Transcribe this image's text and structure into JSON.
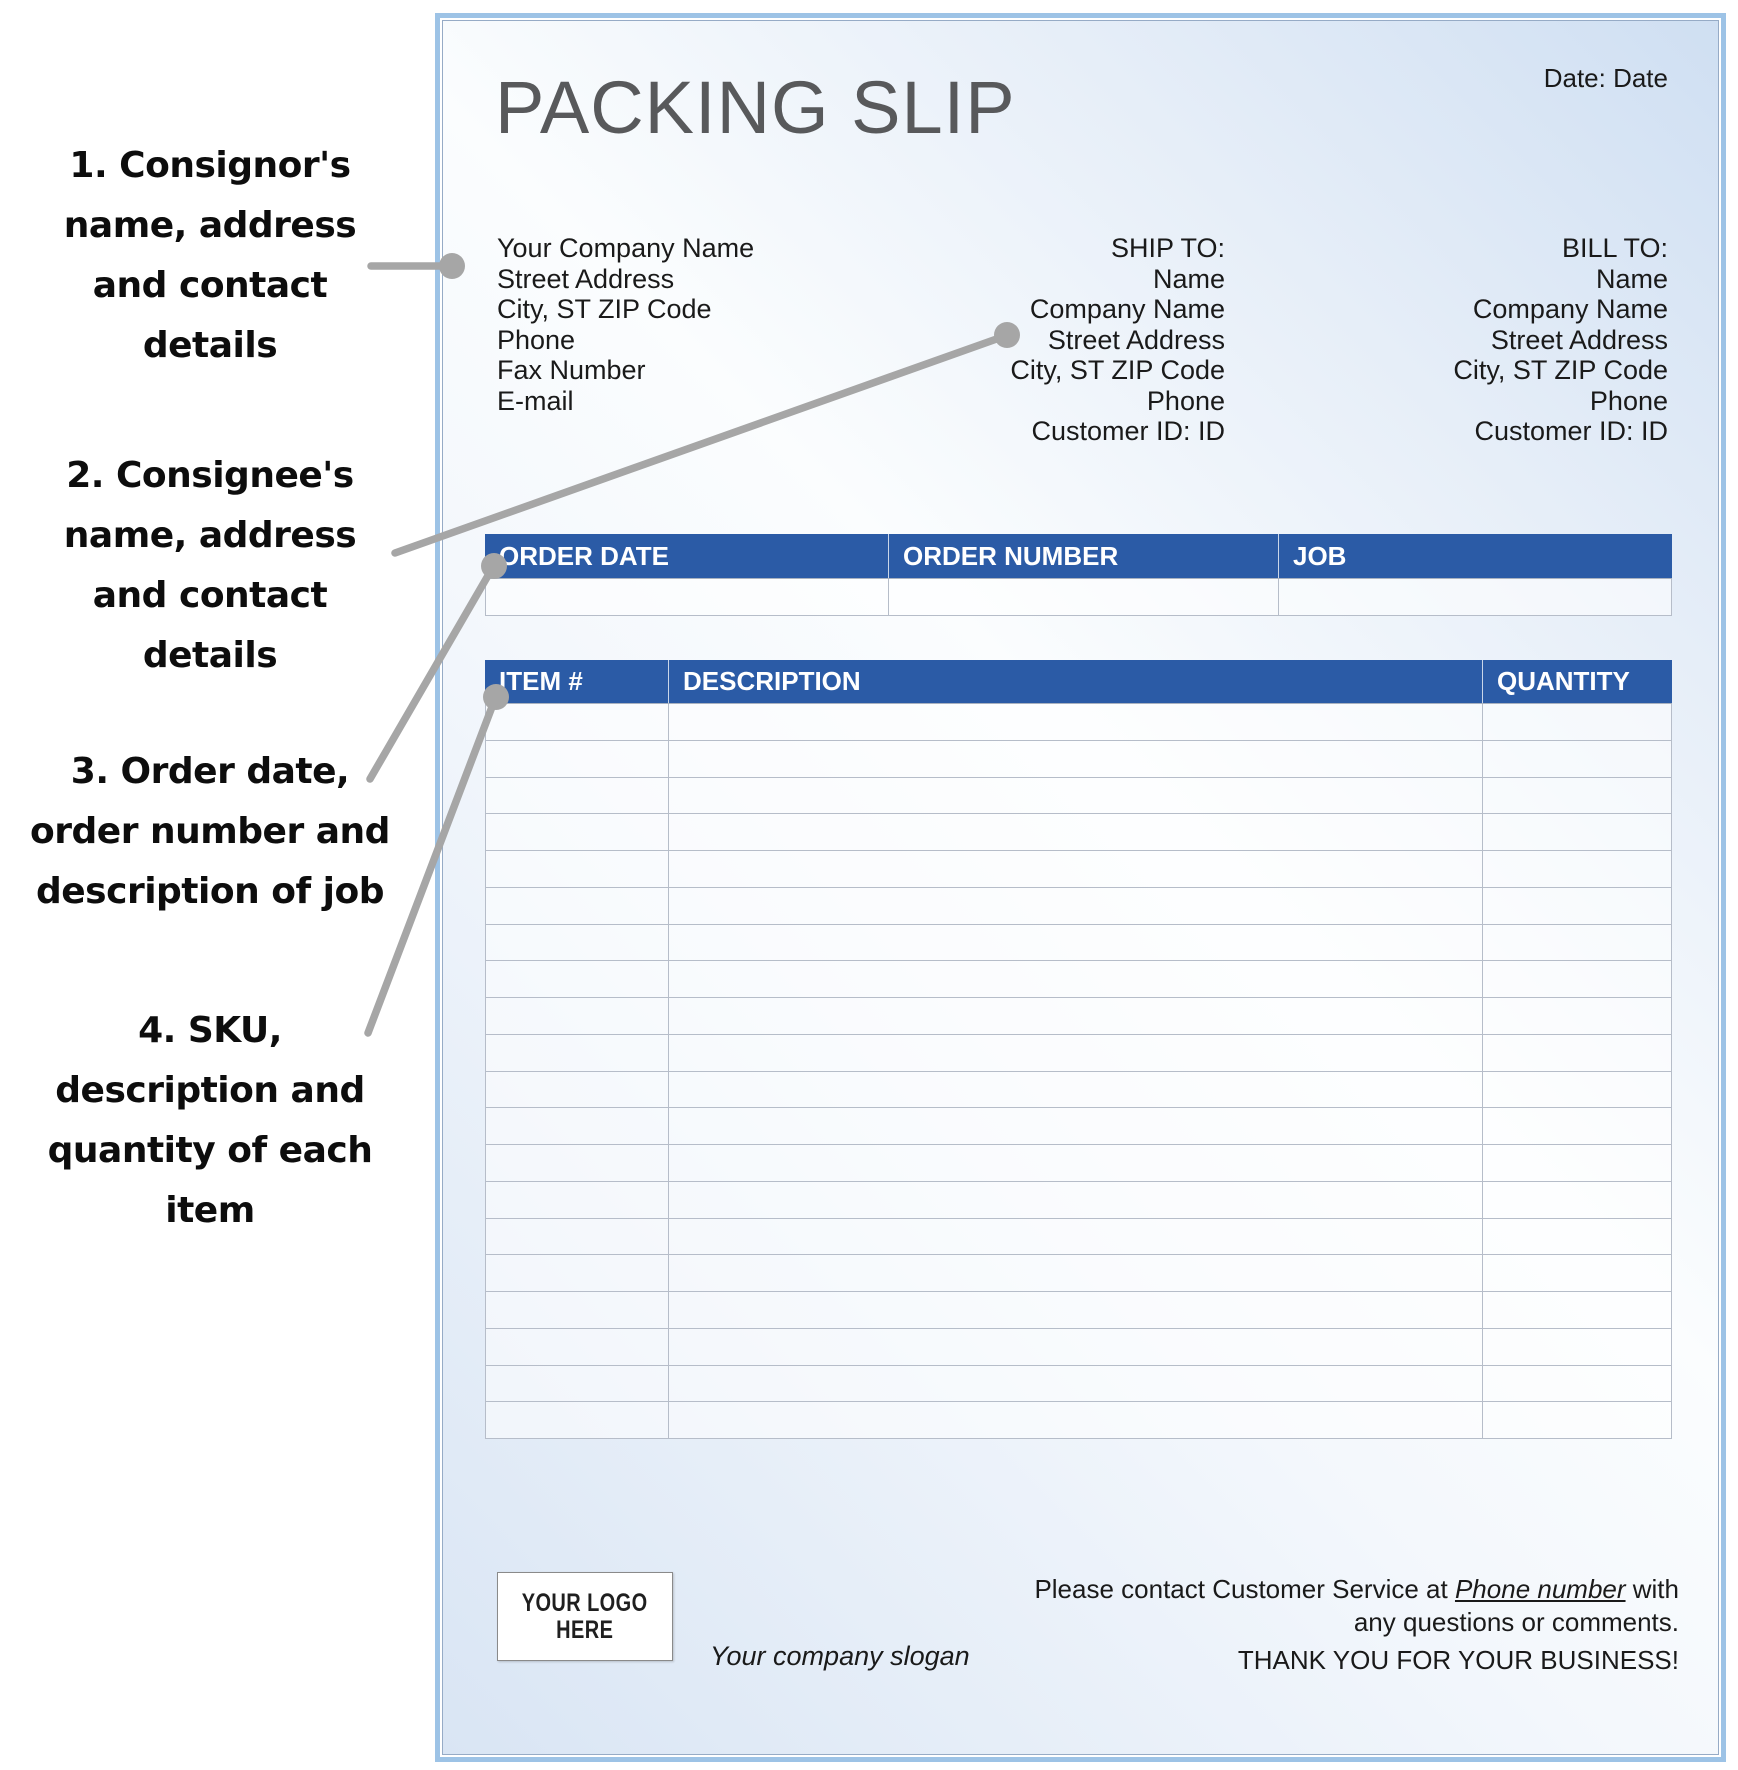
{
  "annotations": [
    {
      "lines": [
        "1. Consignor's",
        "name, address",
        "and contact",
        "details"
      ]
    },
    {
      "lines": [
        "2. Consignee's",
        "name, address",
        "and contact",
        "details"
      ]
    },
    {
      "lines": [
        "3. Order date,",
        "order number and",
        "description of job"
      ]
    },
    {
      "lines": [
        "4. SKU,",
        "description and",
        "quantity of each",
        "item"
      ]
    }
  ],
  "document": {
    "title": "PACKING SLIP",
    "date_line": "Date: Date",
    "company": {
      "lines": [
        "Your Company Name",
        "Street Address",
        "City, ST ZIP Code",
        "Phone",
        "Fax Number",
        "E-mail"
      ]
    },
    "ship_to": {
      "label": "SHIP TO:",
      "lines": [
        "Name",
        "Company Name",
        "Street Address",
        "City, ST ZIP Code",
        "Phone",
        "Customer ID: ID"
      ]
    },
    "bill_to": {
      "label": "BILL TO:",
      "lines": [
        "Name",
        "Company Name",
        "Street Address",
        "City, ST ZIP Code",
        "Phone",
        "Customer ID: ID"
      ]
    },
    "order_table": {
      "headers": [
        "ORDER DATE",
        "ORDER NUMBER",
        "JOB"
      ],
      "empty_row_count": 1
    },
    "item_table": {
      "headers": [
        "ITEM #",
        "DESCRIPTION",
        "QUANTITY"
      ],
      "empty_row_count": 20
    },
    "footer": {
      "logo_lines": [
        "YOUR LOGO",
        "HERE"
      ],
      "slogan": "Your company slogan",
      "service_prefix": "Please contact Customer Service at ",
      "service_phone": "Phone number",
      "service_line1_suffix": " with",
      "service_line2": "any questions or comments.",
      "thanks": "THANK YOU FOR YOUR BUSINESS!"
    },
    "colors": {
      "header_blue": "#2b5ba6",
      "border_blue": "#9dc3e6",
      "title_gray": "#58595b",
      "connector_gray": "#a6a6a6"
    }
  }
}
